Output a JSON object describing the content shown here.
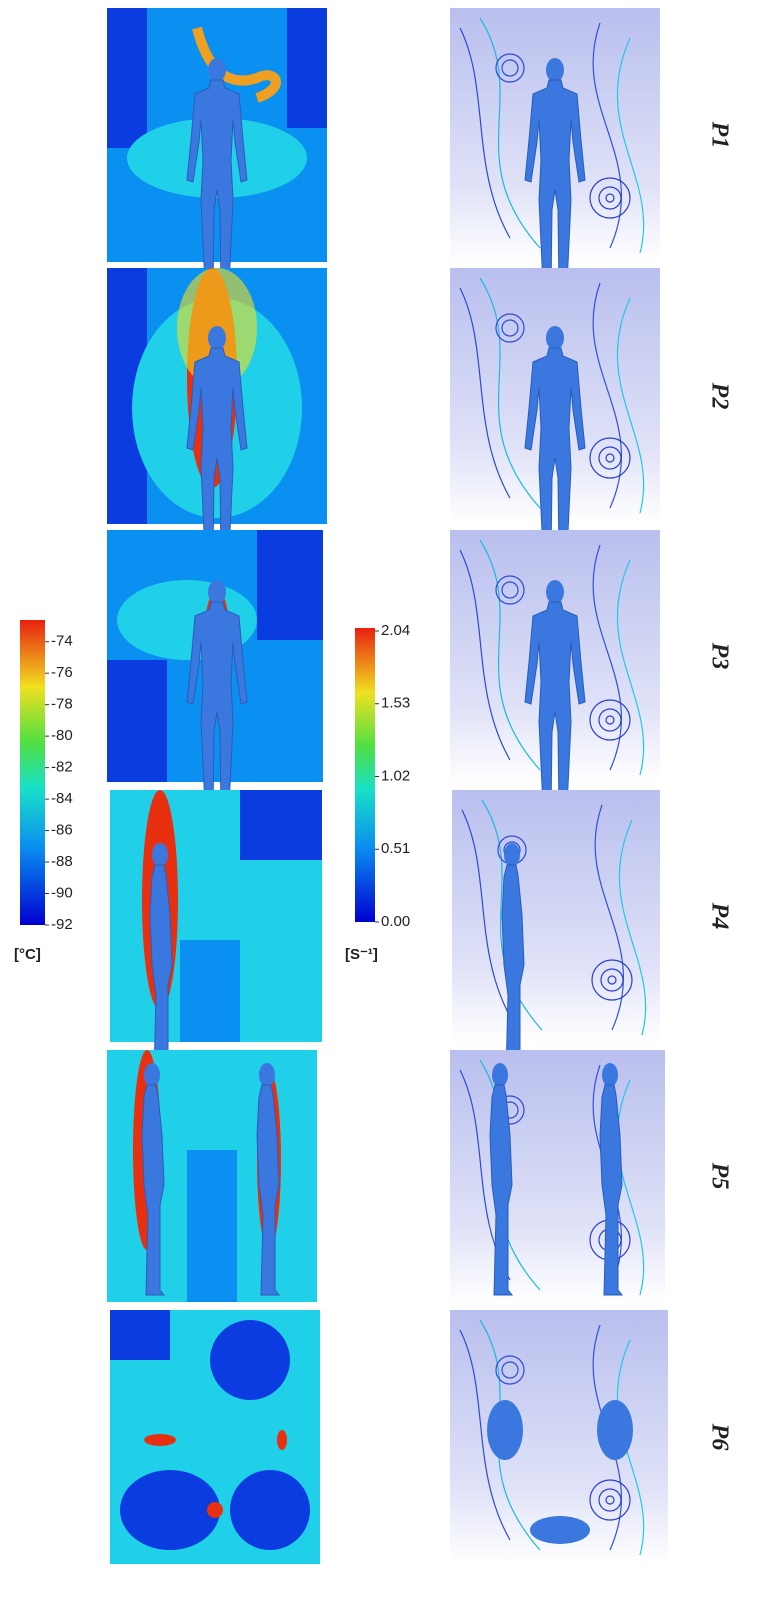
{
  "temperature_scale": {
    "type": "colorbar",
    "unit": "[°C]",
    "ylim": [
      -92,
      -73
    ],
    "yticks": [
      -74,
      -76,
      -78,
      -80,
      -82,
      -84,
      -86,
      -88,
      -90,
      -92
    ]
  },
  "velocity_scale": {
    "type": "colorbar",
    "unit": "[S⁻¹]",
    "ylim": [
      0,
      2.04
    ],
    "yticks": [
      2.04,
      1.53,
      1.02,
      0.51,
      {
        "value": 0,
        "label": "0.00"
      }
    ]
  },
  "panels": [
    {
      "label": "P1"
    },
    {
      "label": "P2"
    },
    {
      "label": "P3"
    },
    {
      "label": "P4"
    },
    {
      "label": "P5"
    },
    {
      "label": "P6"
    }
  ]
}
